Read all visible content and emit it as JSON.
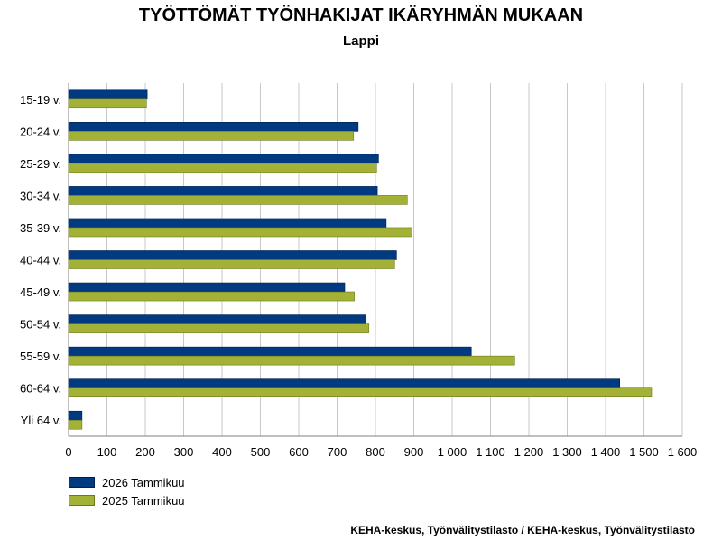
{
  "colors": {
    "series_2026": "#003a80",
    "series_2025": "#a3b236",
    "grid": "#c8c8c8"
  },
  "chart_data": {
    "type": "bar",
    "orientation": "horizontal",
    "title": "TYÖTTÖMÄT TYÖNHAKIJAT IKÄRYHMÄN MUKAAN",
    "subtitle": "Lappi",
    "categories": [
      "15-19 v.",
      "20-24 v.",
      "25-29 v.",
      "30-34 v.",
      "35-39 v.",
      "40-44 v.",
      "45-49 v.",
      "50-54 v.",
      "55-59 v.",
      "60-64 v.",
      "Yli 64 v."
    ],
    "series": [
      {
        "name": "2026 Tammikuu",
        "values": [
          205,
          755,
          808,
          805,
          828,
          855,
          720,
          775,
          1050,
          1437,
          35
        ]
      },
      {
        "name": "2025 Tammikuu",
        "values": [
          203,
          743,
          803,
          883,
          895,
          850,
          745,
          783,
          1163,
          1520,
          35
        ]
      }
    ],
    "xlim": [
      0,
      1600
    ],
    "xticks": [
      0,
      100,
      200,
      300,
      400,
      500,
      600,
      700,
      800,
      900,
      1000,
      1100,
      1200,
      1300,
      1400,
      1500,
      1600
    ],
    "xtick_labels": [
      "0",
      "100",
      "200",
      "300",
      "400",
      "500",
      "600",
      "700",
      "800",
      "900",
      "1 000",
      "1 100",
      "1 200",
      "1 300",
      "1 400",
      "1 500",
      "1 600"
    ],
    "grid": "vertical",
    "legend_position": "bottom-left",
    "source": "KEHA-keskus, Työnvälitystilasto / KEHA-keskus, Työnvälitystilasto"
  }
}
